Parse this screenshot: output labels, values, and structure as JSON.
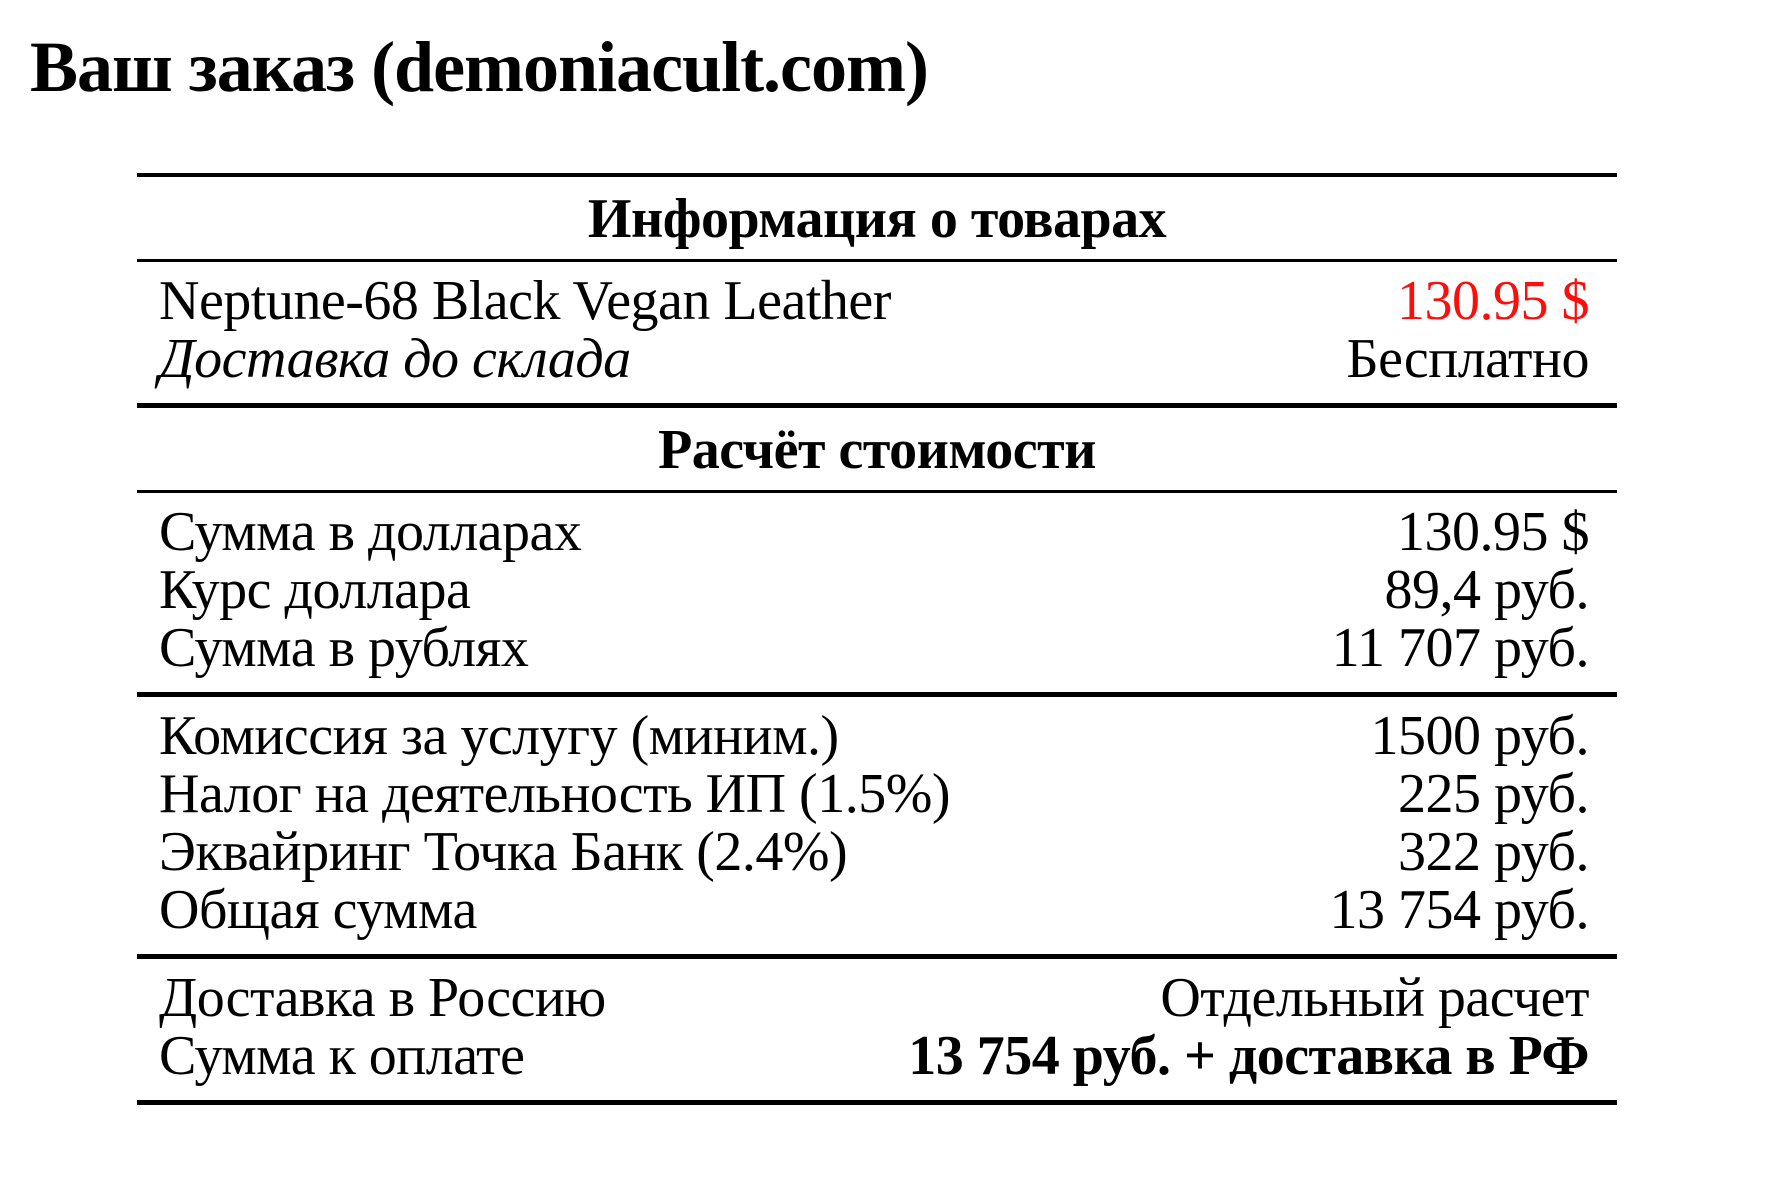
{
  "page": {
    "title": "Ваш заказ (demoniacult.com)"
  },
  "colors": {
    "text": "#000000",
    "rule": "#000000",
    "background": "#ffffff",
    "highlight_red": "#fa0f0c"
  },
  "table": {
    "blocks": [
      {
        "type": "header",
        "name": "section-header-products",
        "rule_above": "top",
        "text": "Информация о товарах"
      },
      {
        "type": "rows",
        "name": "product-rows",
        "rule_above": "light",
        "rows": [
          {
            "label": "Neptune-68 Black Vegan Leather",
            "value": "130.95 $",
            "value_red": true
          },
          {
            "label": "Доставка до склада",
            "label_italic": true,
            "value": "Бесплатно"
          }
        ]
      },
      {
        "type": "header",
        "name": "section-header-cost-calculation",
        "rule_above": "heavy",
        "text": "Расчёт стоимости"
      },
      {
        "type": "rows",
        "name": "currency-conversion-rows",
        "rule_above": "light",
        "rows": [
          {
            "label": "Сумма в долларах",
            "value": "130.95 $"
          },
          {
            "label": "Курс доллара",
            "value": "89,4 руб."
          },
          {
            "label": "Сумма в рублях",
            "value": "11 707 руб."
          }
        ]
      },
      {
        "type": "rows",
        "name": "fees-rows",
        "rule_above": "heavy",
        "rows": [
          {
            "label": "Комиссия за услугу (миним.)",
            "value": "1500 руб."
          },
          {
            "label": "Налог на деятельность ИП (1.5%)",
            "value": "225 руб."
          },
          {
            "label": "Эквайринг Точка Банк (2.4%)",
            "value": "322 руб."
          },
          {
            "label": "Общая сумма",
            "value": "13 754 руб."
          }
        ]
      },
      {
        "type": "rows",
        "name": "total-rows",
        "rule_above": "heavy",
        "rows": [
          {
            "label": "Доставка в Россию",
            "value": "Отдельный расчет"
          },
          {
            "label": "Сумма к оплате",
            "value": "13 754 руб. + доставка в РФ",
            "value_bold": true
          }
        ]
      }
    ]
  }
}
